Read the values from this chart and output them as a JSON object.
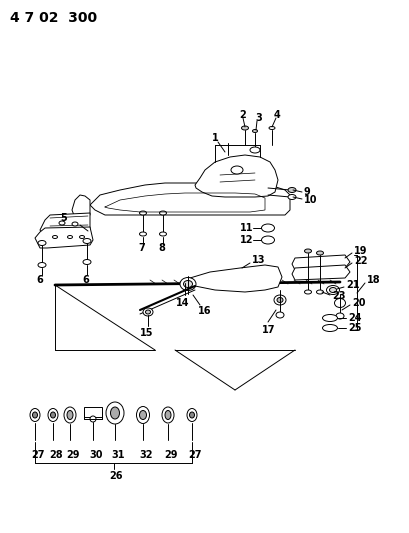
{
  "title": "4 7 02  300",
  "bg_color": "#ffffff",
  "line_color": "#000000",
  "title_fontsize": 10,
  "label_fontsize": 7,
  "figsize": [
    4.09,
    5.33
  ],
  "dpi": 100
}
